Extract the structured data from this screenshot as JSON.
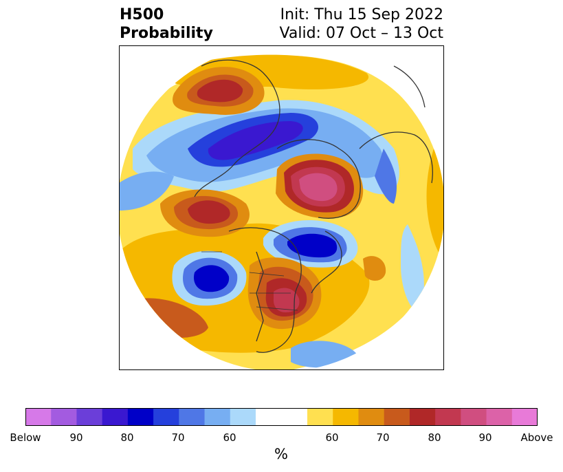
{
  "title": {
    "main_line1": "H500",
    "main_line2": "Probability",
    "init": "Init: Thu 15 Sep 2022",
    "valid": "Valid: 07 Oct – 13 Oct"
  },
  "legend": {
    "unit": "%",
    "colors": [
      "#d679e8",
      "#a35be0",
      "#6b3ed9",
      "#3a18d0",
      "#0000c8",
      "#2540dc",
      "#4f77e6",
      "#77aef2",
      "#abd9fa",
      "#ffffff",
      "#ffe050",
      "#f5b800",
      "#e08c10",
      "#c85a1c",
      "#b02828",
      "#c23850",
      "#d04e80",
      "#dc62a8",
      "#e87ad8"
    ],
    "tick_labels": [
      "Below",
      "90",
      "80",
      "70",
      "60",
      "60",
      "70",
      "80",
      "90",
      "Above"
    ]
  },
  "map": {
    "projection": "north-polar-stereographic",
    "anomalies": [
      {
        "sign": "below",
        "peak": "80"
      },
      {
        "sign": "below",
        "peak": "70"
      },
      {
        "sign": "above",
        "peak": "90"
      },
      {
        "sign": "above",
        "peak": "70"
      },
      {
        "sign": "above",
        "peak": "80"
      },
      {
        "sign": "below",
        "peak": "80"
      },
      {
        "sign": "above",
        "peak": "80"
      }
    ]
  }
}
